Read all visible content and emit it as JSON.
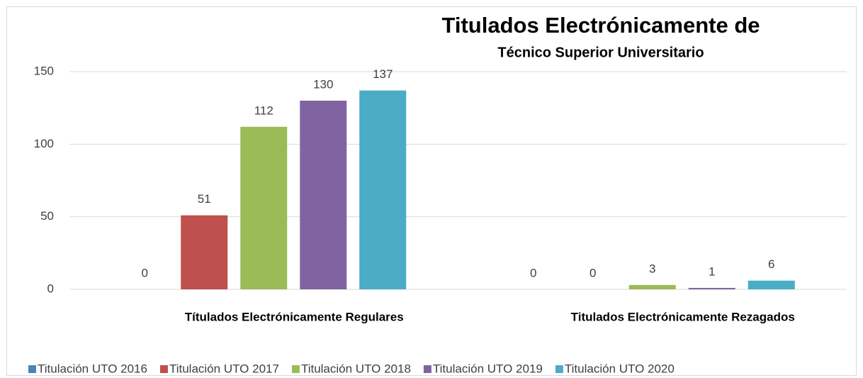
{
  "chart_data": {
    "type": "bar",
    "title": "Titulados Electrónicamente de",
    "subtitle": "Técnico Superior Universitario",
    "categories": [
      "Títulados Electrónicamente Regulares",
      "Titulados Electrónicamente Rezagados"
    ],
    "series": [
      {
        "name": "Titulación UTO 2016",
        "color": "#4f81bd",
        "values": [
          0,
          0
        ]
      },
      {
        "name": "Titulación UTO 2017",
        "color": "#c0504d",
        "values": [
          51,
          0
        ]
      },
      {
        "name": "Titulación UTO 2018",
        "color": "#9bbb59",
        "values": [
          112,
          3
        ]
      },
      {
        "name": "Titulación UTO 2019",
        "color": "#8064a2",
        "values": [
          130,
          1
        ]
      },
      {
        "name": "Titulación UTO 2020",
        "color": "#4bacc6",
        "values": [
          137,
          6
        ]
      }
    ],
    "ylim": [
      0,
      150
    ],
    "yticks": [
      0,
      50,
      100,
      150
    ],
    "grid": true,
    "legend": "bottom"
  }
}
